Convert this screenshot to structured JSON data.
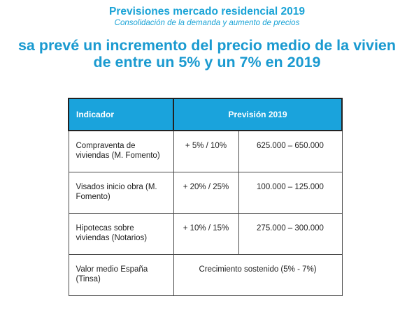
{
  "title": "Previsiones mercado residencial 2019",
  "subtitle": "Consolidación de la demanda y aumento de precios",
  "headline": {
    "line1": "sa prevé un incremento del precio medio de la vivien",
    "line2": "de entre un 5% y un 7% en 2019"
  },
  "table": {
    "headers": {
      "indicator": "Indicador",
      "forecast": "Previsión 2019"
    },
    "rows": [
      {
        "indicator": "Compraventa de viviendas (M. Fomento)",
        "percent": "+ 5% / 10%",
        "range": "625.000 – 650.000"
      },
      {
        "indicator": "Visados inicio obra (M. Fomento)",
        "percent": "+ 20% / 25%",
        "range": "100.000 – 125.000"
      },
      {
        "indicator": "Hipotecas  sobre viviendas (Notarios)",
        "percent": "+ 10% / 15%",
        "range": "275.000 – 300.000"
      }
    ],
    "last_row": {
      "indicator": "Valor medio España (Tinsa)",
      "forecast": "Crecimiento sostenido (5% - 7%)"
    }
  }
}
